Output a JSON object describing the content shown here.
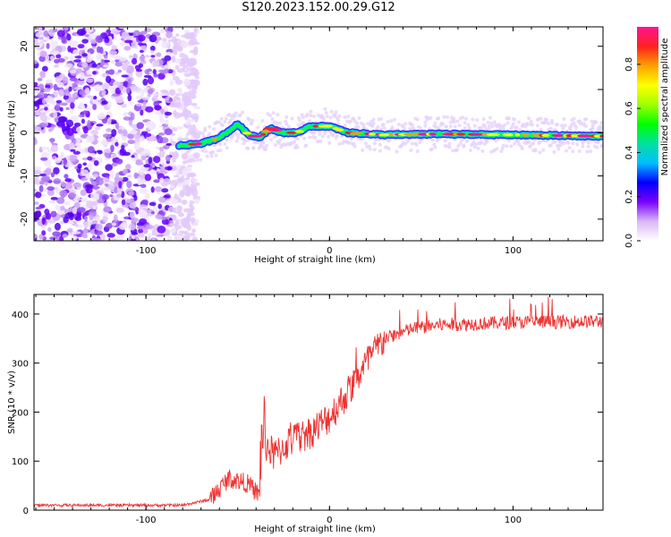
{
  "title": "S120.2023.152.00.29.G12",
  "chart_data": [
    {
      "type": "heatmap",
      "xlabel": "Height of straight line (km)",
      "ylabel": "Frequency (Hz)",
      "xlim": [
        -161,
        149
      ],
      "ylim": [
        -25,
        24.5
      ],
      "x_ticks": [
        "-100",
        "0",
        "100"
      ],
      "y_ticks": [
        "-20",
        "-10",
        "0",
        "10",
        "20"
      ],
      "colorbar": {
        "label": "Normalized spectral amplitude",
        "range": [
          0,
          0.97
        ],
        "ticks": [
          "0.0",
          "0.2",
          "0.4",
          "0.6",
          "0.8"
        ],
        "colors": [
          "#ffffff",
          "#d9b7f6",
          "#7a00ff",
          "#0000ff",
          "#00c0ff",
          "#00e0a0",
          "#00ff00",
          "#a0ff00",
          "#ffff00",
          "#ffa000",
          "#ff2020",
          "#ff1493"
        ]
      },
      "noise_region_x": [
        -161,
        -78
      ],
      "signal_track": [
        {
          "x": -82,
          "y": -3
        },
        {
          "x": -70,
          "y": -2.5
        },
        {
          "x": -62,
          "y": -1.5
        },
        {
          "x": -56,
          "y": 0
        },
        {
          "x": -50,
          "y": 2
        },
        {
          "x": -44,
          "y": -0.5
        },
        {
          "x": -38,
          "y": -1
        },
        {
          "x": -32,
          "y": 1
        },
        {
          "x": -26,
          "y": 0
        },
        {
          "x": -18,
          "y": 0
        },
        {
          "x": -10,
          "y": 1.5
        },
        {
          "x": 0,
          "y": 1.5
        },
        {
          "x": 10,
          "y": 0
        },
        {
          "x": 30,
          "y": -0.5
        },
        {
          "x": 60,
          "y": -0.3
        },
        {
          "x": 100,
          "y": -0.5
        },
        {
          "x": 149,
          "y": -0.8
        }
      ]
    },
    {
      "type": "line",
      "xlabel": "Height of straight line (km)",
      "ylabel": "SNR (10 * v/v)",
      "xlim": [
        -161,
        149
      ],
      "ylim": [
        0,
        440
      ],
      "x_ticks": [
        "-100",
        "0",
        "100"
      ],
      "y_ticks": [
        "0",
        "100",
        "200",
        "300",
        "400"
      ],
      "series": [
        {
          "color": "#ee3333",
          "trend": [
            {
              "x": -161,
              "y": 10
            },
            {
              "x": -80,
              "y": 10
            },
            {
              "x": -65,
              "y": 22
            },
            {
              "x": -55,
              "y": 65
            },
            {
              "x": -45,
              "y": 55
            },
            {
              "x": -38,
              "y": 30
            },
            {
              "x": -36,
              "y": 140
            },
            {
              "x": -30,
              "y": 110
            },
            {
              "x": -22,
              "y": 140
            },
            {
              "x": -10,
              "y": 160
            },
            {
              "x": 0,
              "y": 190
            },
            {
              "x": 10,
              "y": 240
            },
            {
              "x": 20,
              "y": 300
            },
            {
              "x": 30,
              "y": 350
            },
            {
              "x": 45,
              "y": 370
            },
            {
              "x": 60,
              "y": 378
            },
            {
              "x": 100,
              "y": 383
            },
            {
              "x": 149,
              "y": 385
            }
          ]
        }
      ]
    }
  ]
}
